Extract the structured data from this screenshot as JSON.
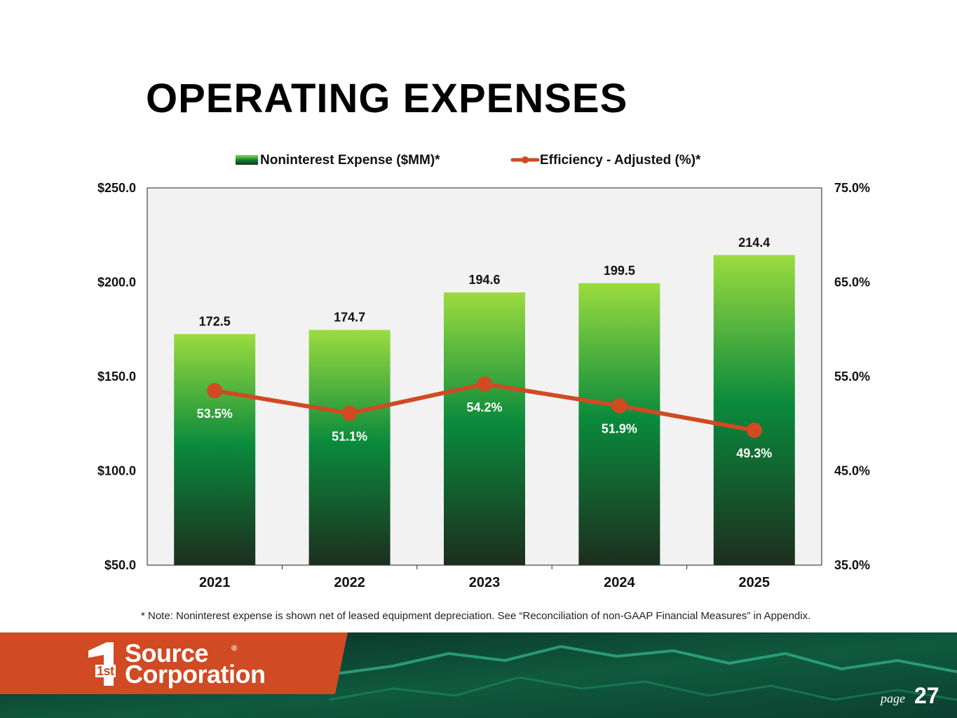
{
  "page": {
    "title": "OPERATING EXPENSES",
    "footnote": "* Note: Noninterest expense is shown net of leased equipment depreciation. See “Reconciliation of non-GAAP Financial Measures” in Appendix.",
    "page_label": "page",
    "page_number": "27"
  },
  "brand": {
    "logo_mark": "1st",
    "logo_line1": "Source",
    "logo_line2": "Corporation",
    "registered": "®",
    "accent_color": "#d04a23",
    "dark_green": "#0b3a2a"
  },
  "chart_data": {
    "type": "bar",
    "categories": [
      "2021",
      "2022",
      "2023",
      "2024",
      "2025"
    ],
    "series": [
      {
        "name": "Noninterest Expense ($MM)*",
        "type": "bar",
        "axis": "left",
        "values": [
          172.5,
          174.7,
          194.6,
          199.5,
          214.4
        ],
        "labels": [
          "172.5",
          "174.7",
          "194.6",
          "199.5",
          "214.4"
        ],
        "color_top": "#9bdc3f",
        "color_mid": "#0a8a3c",
        "color_bottom": "#1d2e1e"
      },
      {
        "name": "Efficiency - Adjusted (%)*",
        "type": "line",
        "axis": "right",
        "values": [
          53.5,
          51.1,
          54.2,
          51.9,
          49.3
        ],
        "labels": [
          "53.5%",
          "51.1%",
          "54.2%",
          "51.9%",
          "49.3%"
        ],
        "color": "#d04a23"
      }
    ],
    "y_left": {
      "min": 50,
      "max": 250,
      "ticks": [
        250,
        200,
        150,
        100,
        50
      ],
      "tick_labels": [
        "$250.0",
        "$200.0",
        "$150.0",
        "$100.0",
        "$50.0"
      ]
    },
    "y_right": {
      "min": 35,
      "max": 75,
      "ticks": [
        75,
        65,
        55,
        45,
        35
      ],
      "tick_labels": [
        "75.0%",
        "65.0%",
        "55.0%",
        "45.0%",
        "35.0%"
      ]
    },
    "legend_position": "top-center",
    "plot_background": "#f2f2f2",
    "grid": false
  }
}
